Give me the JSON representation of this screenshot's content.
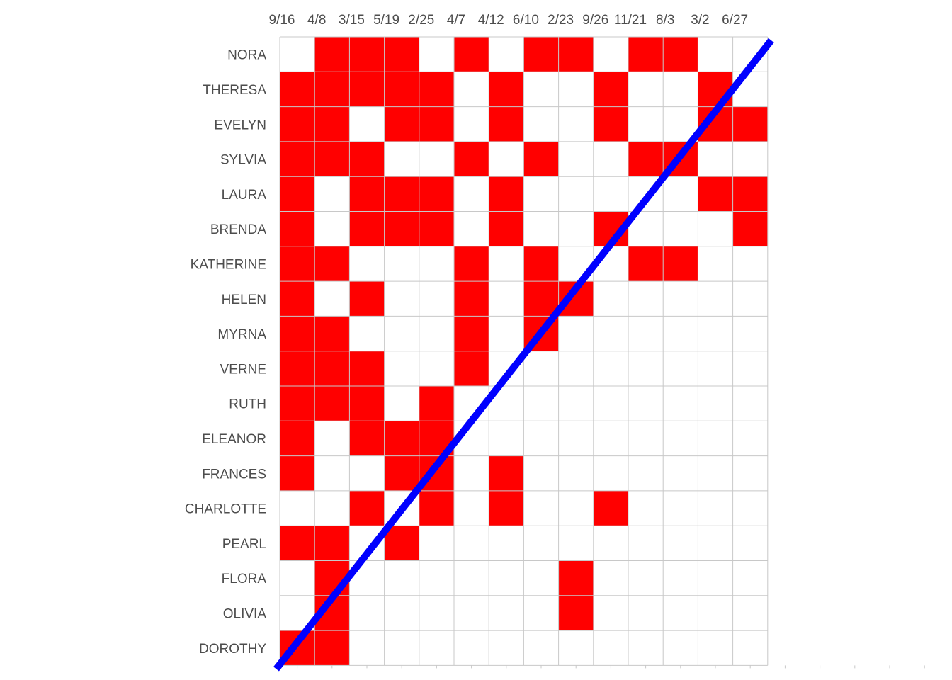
{
  "chart_data": {
    "type": "heatmap",
    "title": "",
    "xlabel": "",
    "ylabel": "",
    "x_tick_labels": [
      "9/16",
      "4/8",
      "3/15",
      "5/19",
      "2/25",
      "4/7",
      "4/12",
      "6/10",
      "2/23",
      "9/26",
      "11/21",
      "8/3",
      "3/2",
      "6/27"
    ],
    "rows": [
      "NORA",
      "THERESA",
      "EVELYN",
      "SYLVIA",
      "LAURA",
      "BRENDA",
      "KATHERINE",
      "HELEN",
      "MYRNA",
      "VERNE",
      "RUTH",
      "ELEANOR",
      "FRANCES",
      "CHARLOTTE",
      "PEARL",
      "FLORA",
      "OLIVIA",
      "DOROTHY"
    ],
    "matrix": [
      [
        0,
        1,
        1,
        1,
        0,
        1,
        0,
        1,
        1,
        0,
        1,
        1,
        0,
        0
      ],
      [
        1,
        1,
        1,
        1,
        1,
        0,
        1,
        0,
        0,
        1,
        0,
        0,
        1,
        0
      ],
      [
        1,
        1,
        0,
        1,
        1,
        0,
        1,
        0,
        0,
        1,
        0,
        0,
        1,
        1
      ],
      [
        1,
        1,
        1,
        0,
        0,
        1,
        0,
        1,
        0,
        0,
        1,
        1,
        0,
        0
      ],
      [
        1,
        0,
        1,
        1,
        1,
        0,
        1,
        0,
        0,
        0,
        0,
        0,
        1,
        1
      ],
      [
        1,
        0,
        1,
        1,
        1,
        0,
        1,
        0,
        0,
        1,
        0,
        0,
        0,
        1
      ],
      [
        1,
        1,
        0,
        0,
        0,
        1,
        0,
        1,
        0,
        0,
        1,
        1,
        0,
        0
      ],
      [
        1,
        0,
        1,
        0,
        0,
        1,
        0,
        1,
        1,
        0,
        0,
        0,
        0,
        0
      ],
      [
        1,
        1,
        0,
        0,
        0,
        1,
        0,
        1,
        0,
        0,
        0,
        0,
        0,
        0
      ],
      [
        1,
        1,
        1,
        0,
        0,
        1,
        0,
        0,
        0,
        0,
        0,
        0,
        0,
        0
      ],
      [
        1,
        1,
        1,
        0,
        1,
        0,
        0,
        0,
        0,
        0,
        0,
        0,
        0,
        0
      ],
      [
        1,
        0,
        1,
        1,
        1,
        0,
        0,
        0,
        0,
        0,
        0,
        0,
        0,
        0
      ],
      [
        1,
        0,
        0,
        1,
        1,
        0,
        1,
        0,
        0,
        0,
        0,
        0,
        0,
        0
      ],
      [
        0,
        0,
        1,
        0,
        1,
        0,
        1,
        0,
        0,
        1,
        0,
        0,
        0,
        0
      ],
      [
        1,
        1,
        0,
        1,
        0,
        0,
        0,
        0,
        0,
        0,
        0,
        0,
        0,
        0
      ],
      [
        0,
        1,
        0,
        0,
        0,
        0,
        0,
        0,
        1,
        0,
        0,
        0,
        0,
        0
      ],
      [
        0,
        1,
        0,
        0,
        0,
        0,
        0,
        0,
        1,
        0,
        0,
        0,
        0,
        0
      ],
      [
        1,
        1,
        0,
        0,
        0,
        0,
        0,
        0,
        0,
        0,
        0,
        0,
        0,
        0
      ]
    ],
    "fill_color": "#ff0000",
    "empty_color": "#ffffff",
    "grid": true,
    "grid_color": "#c8c8c8",
    "overlay_line": {
      "color": "#0000ff",
      "from": [
        0.0,
        18.0
      ],
      "to": [
        14.0,
        0.0
      ]
    }
  }
}
